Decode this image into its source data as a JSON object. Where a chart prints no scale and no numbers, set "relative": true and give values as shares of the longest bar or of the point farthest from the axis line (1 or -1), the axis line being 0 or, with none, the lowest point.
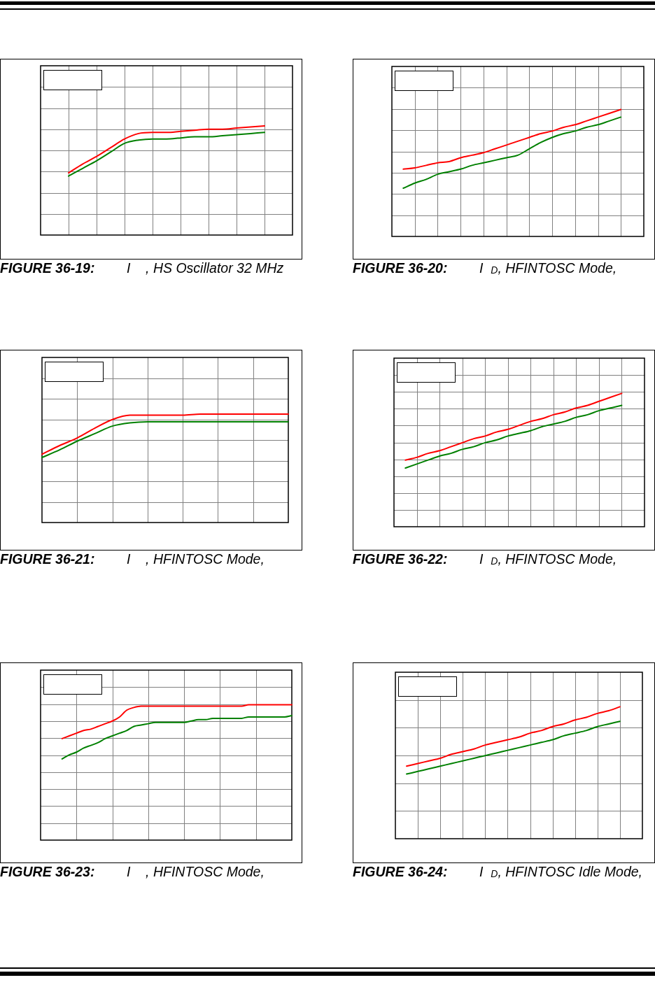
{
  "chart_data": [
    {
      "type": "line",
      "title": "FIGURE 36-19:",
      "subtitle": "I    , HS Oscillator 32 MHz",
      "relative": true,
      "grid": true,
      "marker": "none",
      "tick_labels": false,
      "categories": [
        null,
        null,
        null,
        null,
        null,
        null,
        null,
        null,
        null,
        null,
        null,
        null,
        null,
        null,
        null,
        null,
        null,
        null,
        null
      ],
      "series": [
        {
          "color": "#ff0000",
          "values": [
            null,
            null,
            0.57,
            0.65,
            0.72,
            0.8,
            0.88,
            0.93,
            0.94,
            0.94,
            0.95,
            0.96,
            0.97,
            0.97,
            0.98,
            0.99,
            1,
            null,
            null
          ]
        },
        {
          "color": "#008000",
          "values": [
            null,
            null,
            0.54,
            0.61,
            0.68,
            0.76,
            0.84,
            0.87,
            0.88,
            0.88,
            0.89,
            0.9,
            0.9,
            0.91,
            0.92,
            0.93,
            0.94,
            null,
            null
          ]
        }
      ]
    },
    {
      "type": "line",
      "title": "FIGURE 36-20:",
      "subtitle": "I  $_{D}$, HFINTOSC Mode,",
      "relative": true,
      "grid": true,
      "marker": "none",
      "tick_labels": false,
      "categories": [
        null,
        null,
        null,
        null,
        null,
        null,
        null,
        null,
        null,
        null,
        null,
        null,
        null,
        null,
        null,
        null,
        null,
        null,
        null,
        null,
        null,
        null,
        null
      ],
      "series": [
        {
          "color": "#ff0000",
          "values": [
            null,
            0.53,
            0.54,
            0.56,
            0.58,
            0.59,
            0.62,
            0.64,
            0.66,
            0.69,
            0.72,
            0.75,
            0.78,
            0.81,
            0.83,
            0.86,
            0.88,
            0.91,
            0.94,
            0.97,
            1,
            null,
            null
          ]
        },
        {
          "color": "#008000",
          "values": [
            null,
            0.38,
            0.42,
            0.45,
            0.49,
            0.51,
            0.53,
            0.56,
            0.58,
            0.6,
            0.62,
            0.64,
            0.69,
            0.74,
            0.78,
            0.81,
            0.83,
            0.86,
            0.88,
            0.91,
            0.94,
            null,
            null
          ]
        }
      ]
    },
    {
      "type": "line",
      "title": "FIGURE 36-21:",
      "subtitle": "I    , HFINTOSC Mode,",
      "relative": true,
      "grid": true,
      "marker": "none",
      "tick_labels": false,
      "categories": [
        null,
        null,
        null,
        null,
        null,
        null,
        null,
        null,
        null,
        null,
        null,
        null,
        null,
        null,
        null
      ],
      "series": [
        {
          "color": "#ff0000",
          "values": [
            0.63,
            0.71,
            0.78,
            0.87,
            0.95,
            0.99,
            0.99,
            0.99,
            0.99,
            1,
            1,
            1,
            1,
            1,
            1
          ]
        },
        {
          "color": "#008000",
          "values": [
            0.6,
            0.67,
            0.75,
            0.82,
            0.89,
            0.92,
            0.93,
            0.93,
            0.93,
            0.93,
            0.93,
            0.93,
            0.93,
            0.93,
            0.93
          ]
        }
      ]
    },
    {
      "type": "line",
      "title": "FIGURE 36-22:",
      "subtitle": "I  $_{D}$, HFINTOSC Mode,",
      "relative": true,
      "grid": true,
      "marker": "none",
      "tick_labels": false,
      "categories": [
        null,
        null,
        null,
        null,
        null,
        null,
        null,
        null,
        null,
        null,
        null,
        null,
        null,
        null,
        null,
        null,
        null,
        null,
        null,
        null,
        null,
        null,
        null
      ],
      "series": [
        {
          "color": "#ff0000",
          "values": [
            null,
            0.5,
            0.52,
            0.55,
            0.57,
            0.6,
            0.63,
            0.66,
            0.68,
            0.71,
            0.73,
            0.76,
            0.79,
            0.81,
            0.84,
            0.86,
            0.89,
            0.91,
            0.94,
            0.97,
            1,
            null,
            null
          ]
        },
        {
          "color": "#008000",
          "values": [
            null,
            0.44,
            0.47,
            0.5,
            0.53,
            0.55,
            0.58,
            0.6,
            0.63,
            0.65,
            0.68,
            0.7,
            0.72,
            0.75,
            0.77,
            0.79,
            0.82,
            0.84,
            0.87,
            0.89,
            0.91,
            null,
            null
          ]
        }
      ]
    },
    {
      "type": "line",
      "title": "FIGURE 36-23:",
      "subtitle": "I    , HFINTOSC Mode,",
      "relative": true,
      "grid": true,
      "marker": "none",
      "tick_labels": false,
      "categories": [
        null,
        null,
        null,
        null,
        null,
        null,
        null,
        null,
        null,
        null,
        null,
        null,
        null,
        null,
        null,
        null,
        null,
        null,
        null,
        null,
        null,
        null,
        null,
        null,
        null,
        null,
        null,
        null,
        null,
        null,
        null,
        null,
        null,
        null,
        null,
        null
      ],
      "series": [
        {
          "color": "#ff0000",
          "values": [
            null,
            null,
            null,
            0.75,
            0.77,
            0.79,
            0.81,
            0.82,
            0.84,
            0.86,
            0.88,
            0.91,
            0.96,
            0.98,
            0.99,
            0.99,
            0.99,
            0.99,
            0.99,
            0.99,
            0.99,
            0.99,
            0.99,
            0.99,
            0.99,
            0.99,
            0.99,
            0.99,
            0.99,
            1,
            1,
            1,
            1,
            1,
            1,
            1
          ]
        },
        {
          "color": "#008000",
          "values": [
            null,
            null,
            null,
            0.6,
            0.63,
            0.65,
            0.68,
            0.7,
            0.72,
            0.75,
            0.77,
            0.79,
            0.81,
            0.84,
            0.85,
            0.86,
            0.87,
            0.87,
            0.87,
            0.87,
            0.87,
            0.88,
            0.89,
            0.89,
            0.9,
            0.9,
            0.9,
            0.9,
            0.9,
            0.91,
            0.91,
            0.91,
            0.91,
            0.91,
            0.91,
            0.92
          ]
        }
      ]
    },
    {
      "type": "line",
      "title": "FIGURE 36-24:",
      "subtitle": "I  $_{D}$, HFINTOSC Idle Mode,",
      "relative": true,
      "grid": true,
      "marker": "none",
      "tick_labels": false,
      "categories": [
        null,
        null,
        null,
        null,
        null,
        null,
        null,
        null,
        null,
        null,
        null,
        null,
        null,
        null,
        null,
        null,
        null,
        null,
        null,
        null,
        null,
        null,
        null
      ],
      "series": [
        {
          "color": "#ff0000",
          "values": [
            null,
            0.55,
            0.57,
            0.59,
            0.61,
            0.64,
            0.66,
            0.68,
            0.71,
            0.73,
            0.75,
            0.77,
            0.8,
            0.82,
            0.85,
            0.87,
            0.9,
            0.92,
            0.95,
            0.97,
            1,
            null,
            null
          ]
        },
        {
          "color": "#008000",
          "values": [
            null,
            0.49,
            0.51,
            0.53,
            0.55,
            0.57,
            0.59,
            0.61,
            0.63,
            0.65,
            0.67,
            0.69,
            0.71,
            0.73,
            0.75,
            0.78,
            0.8,
            0.82,
            0.85,
            0.87,
            0.89,
            null,
            null
          ]
        }
      ]
    }
  ]
}
